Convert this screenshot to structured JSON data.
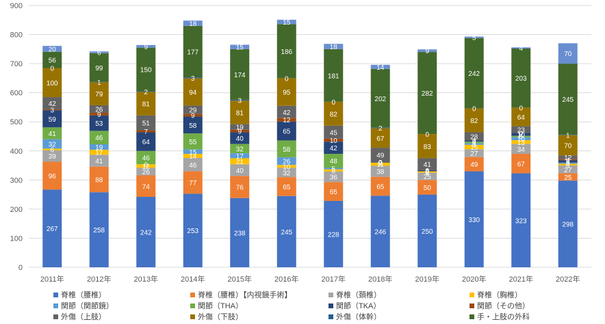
{
  "chart_data": {
    "type": "bar",
    "stacked": true,
    "categories": [
      "2011年",
      "2012年",
      "2013年",
      "2014年",
      "2015年",
      "2016年",
      "2017年",
      "2018年",
      "2019年",
      "2020年",
      "2021年",
      "2022年"
    ],
    "ylim": [
      0,
      900
    ],
    "yticks": [
      "0",
      "100",
      "200",
      "300",
      "400",
      "500",
      "600",
      "700",
      "800",
      "900"
    ],
    "grid": true,
    "legend_position": "bottom",
    "series": [
      {
        "name": "脊椎（腰椎）",
        "color": "#4472C4",
        "values": [
          267,
          258,
          242,
          253,
          238,
          245,
          228,
          246,
          250,
          330,
          323,
          298
        ]
      },
      {
        "name": "脊椎（腰椎）【内視鏡手術】",
        "color": "#ED7D31",
        "values": [
          96,
          88,
          74,
          77,
          76,
          65,
          65,
          65,
          50,
          49,
          67,
          25
        ]
      },
      {
        "name": "脊椎（頚椎）",
        "color": "#A5A5A5",
        "values": [
          39,
          41,
          26,
          46,
          40,
          32,
          36,
          38,
          25,
          27,
          34,
          27
        ]
      },
      {
        "name": "脊椎（胸椎）",
        "color": "#FFC000",
        "values": [
          6,
          17,
          12,
          14,
          21,
          10,
          8,
          11,
          5,
          15,
          13,
          6
        ]
      },
      {
        "name": "関節（関節鏡）",
        "color": "#5B9BD5",
        "values": [
          32,
          19,
          0,
          15,
          17,
          26,
          5,
          0,
          0,
          5,
          10,
          4
        ]
      },
      {
        "name": "関節（THA）",
        "color": "#70AD47",
        "values": [
          41,
          46,
          46,
          55,
          32,
          58,
          48,
          0,
          0,
          6,
          5,
          0
        ]
      },
      {
        "name": "関節（TKA）",
        "color": "#264478",
        "values": [
          59,
          53,
          64,
          58,
          40,
          65,
          42,
          2,
          4,
          4,
          10,
          8
        ]
      },
      {
        "name": "関節（その他）",
        "color": "#9E480E",
        "values": [
          3,
          9,
          7,
          9,
          9,
          12,
          10,
          0,
          0,
          0,
          0,
          4
        ]
      },
      {
        "name": "外傷（上肢）",
        "color": "#636363",
        "values": [
          42,
          26,
          51,
          29,
          19,
          42,
          45,
          49,
          41,
          28,
          23,
          12
        ]
      },
      {
        "name": "外傷（下肢）",
        "color": "#997300",
        "values": [
          100,
          79,
          81,
          94,
          81,
          95,
          82,
          67,
          83,
          82,
          64,
          70
        ]
      },
      {
        "name": "外傷（体幹）",
        "color": "#255E91",
        "values": [
          0,
          1,
          2,
          3,
          3,
          0,
          0,
          2,
          0,
          0,
          0,
          1
        ]
      },
      {
        "name": "手・上肢の外科",
        "color": "#43682B",
        "values": [
          56,
          99,
          150,
          177,
          174,
          186,
          181,
          202,
          282,
          242,
          203,
          245
        ]
      },
      {
        "name": "",
        "color": "#698ED0",
        "values": [
          20,
          6,
          9,
          18,
          15,
          15,
          18,
          14,
          9,
          5,
          4,
          70
        ]
      },
      {
        "name": "",
        "color": "#F1975A",
        "values": [
          0,
          0,
          0,
          0,
          0,
          0,
          0,
          0,
          0,
          0,
          0,
          0
        ]
      }
    ]
  }
}
